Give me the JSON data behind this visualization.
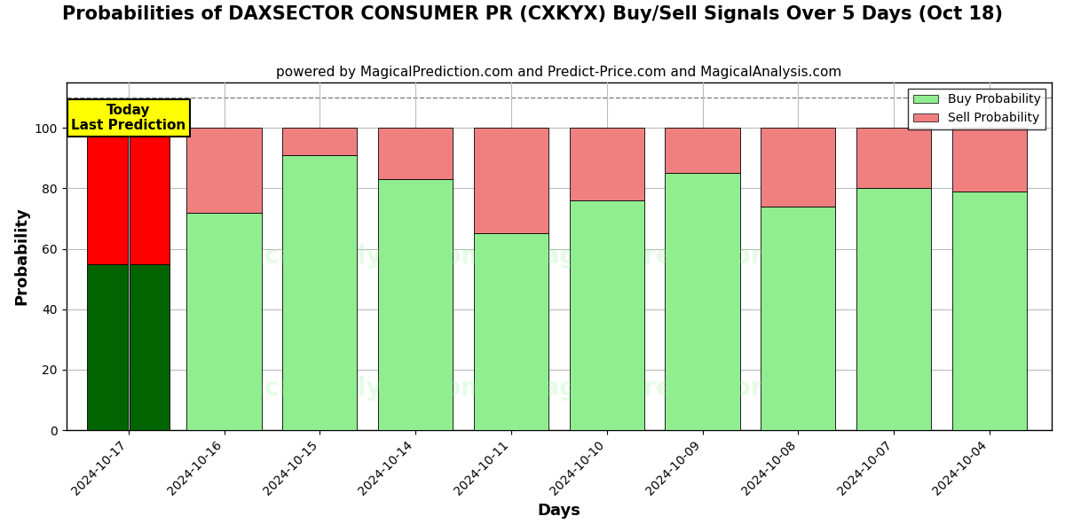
{
  "title": "Probabilities of DAXSECTOR CONSUMER PR (CXKYX) Buy/Sell Signals Over 5 Days (Oct 18)",
  "subtitle": "powered by MagicalPrediction.com and Predict-Price.com and MagicalAnalysis.com",
  "xlabel": "Days",
  "ylabel": "Probability",
  "unique_dates": [
    "2024-10-17",
    "2024-10-16",
    "2024-10-15",
    "2024-10-14",
    "2024-10-11",
    "2024-10-10",
    "2024-10-09",
    "2024-10-08",
    "2024-10-07",
    "2024-10-04"
  ],
  "buy_values": [
    55,
    55,
    72,
    91,
    83,
    65,
    76,
    85,
    74,
    80,
    79
  ],
  "sell_values": [
    45,
    45,
    28,
    9,
    17,
    35,
    24,
    15,
    26,
    20,
    21
  ],
  "buy_colors": [
    "#006400",
    "#006400",
    "#90EE90",
    "#90EE90",
    "#90EE90",
    "#90EE90",
    "#90EE90",
    "#90EE90",
    "#90EE90",
    "#90EE90",
    "#90EE90"
  ],
  "sell_colors": [
    "#FF0000",
    "#FF0000",
    "#F08080",
    "#F08080",
    "#F08080",
    "#F08080",
    "#F08080",
    "#F08080",
    "#F08080",
    "#F08080",
    "#F08080"
  ],
  "today_label": "Today\nLast Prediction",
  "today_label_bg": "#FFFF00",
  "dashed_line_y": 110,
  "ylim": [
    0,
    115
  ],
  "yticks": [
    0,
    20,
    40,
    60,
    80,
    100
  ],
  "legend_buy_color": "#90EE90",
  "legend_sell_color": "#F08080",
  "background_color": "#ffffff",
  "grid_color": "#bbbbbb",
  "title_fontsize": 15,
  "subtitle_fontsize": 11,
  "axis_label_fontsize": 13,
  "tick_fontsize": 10
}
